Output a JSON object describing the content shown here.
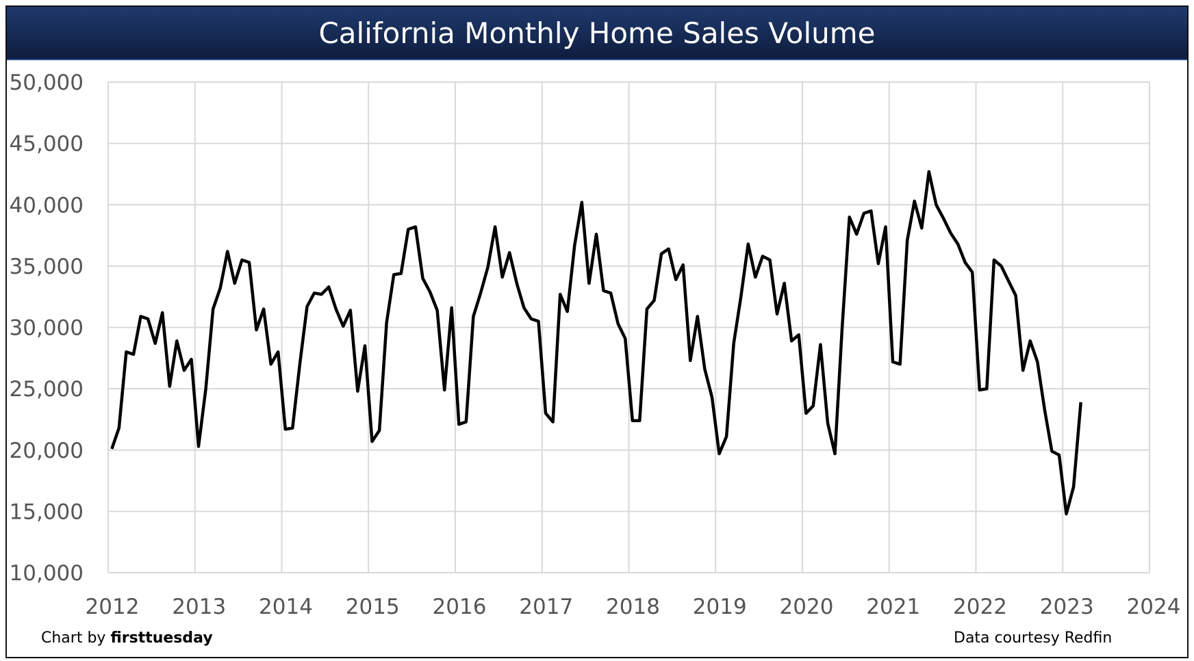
{
  "chart_data": {
    "type": "line",
    "title": "California Monthly Home Sales Volume",
    "xlabel": "",
    "ylabel": "",
    "xlim": [
      2012,
      2024
    ],
    "ylim": [
      10000,
      50000
    ],
    "grid": true,
    "x_ticks": [
      "2012",
      "2013",
      "2014",
      "2015",
      "2016",
      "2017",
      "2018",
      "2019",
      "2020",
      "2021",
      "2022",
      "2023",
      "2024"
    ],
    "y_ticks": [
      "10,000",
      "15,000",
      "20,000",
      "25,000",
      "30,000",
      "35,000",
      "40,000",
      "45,000",
      "50,000"
    ],
    "y_tick_values": [
      10000,
      15000,
      20000,
      25000,
      30000,
      35000,
      40000,
      45000,
      50000
    ],
    "x_start": "2012-01",
    "frequency": "monthly",
    "line_color": "#000000",
    "series": [
      {
        "values": [
          20100,
          21800,
          28000,
          27800,
          30900,
          30700,
          28700,
          31200,
          25200,
          28900,
          26500,
          27400,
          20300,
          25000,
          31500,
          33200,
          36200,
          33600,
          35500,
          35300,
          29800,
          31500,
          27000,
          28000,
          21700,
          21800,
          27000,
          31700,
          32800,
          32700,
          33300,
          31500,
          30100,
          31400,
          24800,
          28500,
          20700,
          21600,
          30400,
          34300,
          34400,
          38000,
          38200,
          34000,
          32900,
          31400,
          24900,
          31600,
          22100,
          22300,
          30900,
          32800,
          34900,
          38200,
          34100,
          36100,
          33600,
          31600,
          30700,
          30500,
          23000,
          22300,
          32700,
          31300,
          36700,
          40200,
          33600,
          37600,
          33000,
          32800,
          30300,
          29100,
          22400,
          22400,
          31500,
          32200,
          36000,
          36400,
          33900,
          35100,
          27300,
          30900,
          26600,
          24300,
          19700,
          21100,
          28700,
          32500,
          36800,
          34100,
          35800,
          35500,
          31100,
          33600,
          28900,
          29400,
          23000,
          23600,
          28600,
          22200,
          19700,
          30000,
          39000,
          37600,
          39300,
          39500,
          35200,
          38200,
          27200,
          27000,
          37100,
          40300,
          38100,
          42700,
          40000,
          38900,
          37700,
          36800,
          35300,
          34500,
          24900,
          25000,
          35500,
          35000,
          33800,
          32600,
          26500,
          28900,
          27200,
          23300,
          19900,
          19600,
          14800,
          17000,
          23900
        ]
      }
    ]
  },
  "footer": {
    "credit_prefix": "Chart by ",
    "credit_brand": "firsttuesday",
    "source": "Data courtesy Redfin"
  },
  "colors": {
    "title_bar": "#1a3264",
    "grid": "#d9d9d9",
    "line": "#000000"
  }
}
